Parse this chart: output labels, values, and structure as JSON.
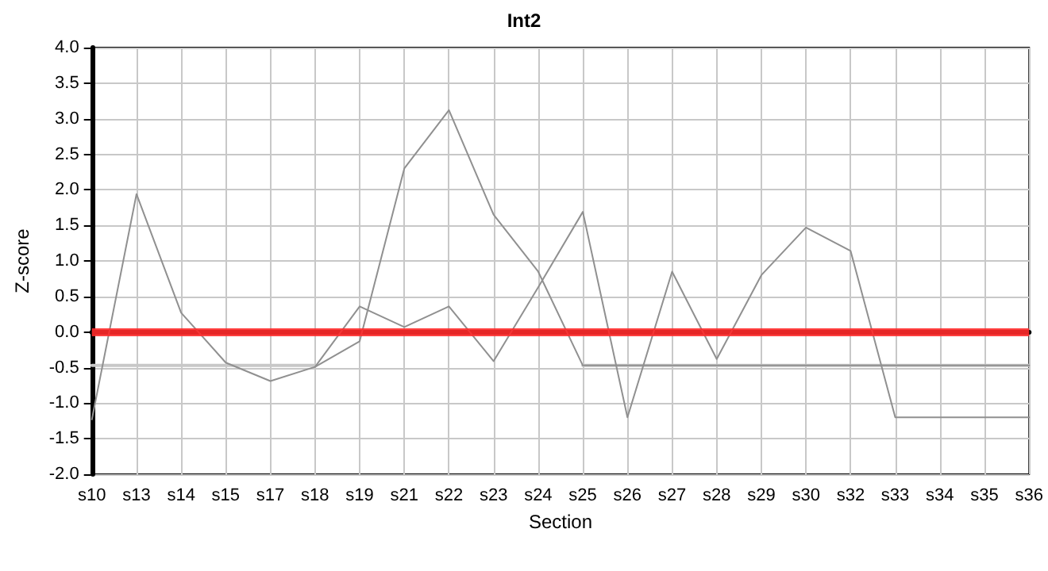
{
  "chart_data": {
    "type": "line",
    "title": "Int2",
    "xlabel": "Section",
    "ylabel": "Z-score",
    "categories": [
      "s10",
      "s13",
      "s14",
      "s15",
      "s17",
      "s18",
      "s19",
      "s21",
      "s22",
      "s23",
      "s24",
      "s25",
      "s26",
      "s27",
      "s28",
      "s29",
      "s30",
      "s32",
      "s33",
      "s34",
      "s35",
      "s36"
    ],
    "series": [
      {
        "color": "#c8c8c8",
        "values": [
          -0.47,
          -0.47,
          -0.47,
          -0.47,
          -0.47,
          -0.47,
          null,
          null,
          null,
          null,
          null,
          -0.47,
          -0.47,
          -0.47,
          -0.47,
          -0.47,
          -0.47,
          -0.47,
          -0.47,
          -0.47,
          -0.47,
          -0.47
        ]
      },
      {
        "color": "#909090",
        "values": [
          -1.23,
          1.94,
          0.27,
          -0.43,
          -0.69,
          -0.49,
          -0.13,
          2.3,
          3.12,
          1.65,
          0.85,
          -0.47,
          -0.47,
          -0.47,
          -0.47,
          -0.47,
          -0.47,
          -0.47,
          -0.47,
          -0.47,
          -0.47,
          -0.47
        ]
      },
      {
        "color": "#909090",
        "values": [
          null,
          null,
          null,
          null,
          null,
          -0.49,
          0.36,
          0.07,
          0.36,
          -0.41,
          0.63,
          1.69,
          -1.2,
          0.85,
          -0.38,
          0.8,
          1.47,
          1.14,
          -1.2,
          -1.2,
          -1.2,
          -1.2
        ]
      }
    ],
    "ylim": [
      -2,
      4
    ],
    "yticks": [
      {
        "value": -2,
        "label": "-2.0"
      },
      {
        "value": -1.5,
        "label": "-1.5"
      },
      {
        "value": -1,
        "label": "-1.0"
      },
      {
        "value": -0.5,
        "label": "-0.5"
      },
      {
        "value": 0,
        "label": "0.0"
      },
      {
        "value": 0.5,
        "label": "0.5"
      },
      {
        "value": 1,
        "label": "1.0"
      },
      {
        "value": 1.5,
        "label": "1.5"
      },
      {
        "value": 2,
        "label": "2.0"
      },
      {
        "value": 2.5,
        "label": "2.5"
      },
      {
        "value": 3,
        "label": "3.0"
      },
      {
        "value": 3.5,
        "label": "3.5"
      },
      {
        "value": 4,
        "label": "4.0"
      }
    ],
    "ref_lines": [
      {
        "axis": "y",
        "value": 0,
        "color": "#ff2a2a"
      }
    ],
    "grid": true,
    "marker": "none",
    "line_style": "solid"
  }
}
